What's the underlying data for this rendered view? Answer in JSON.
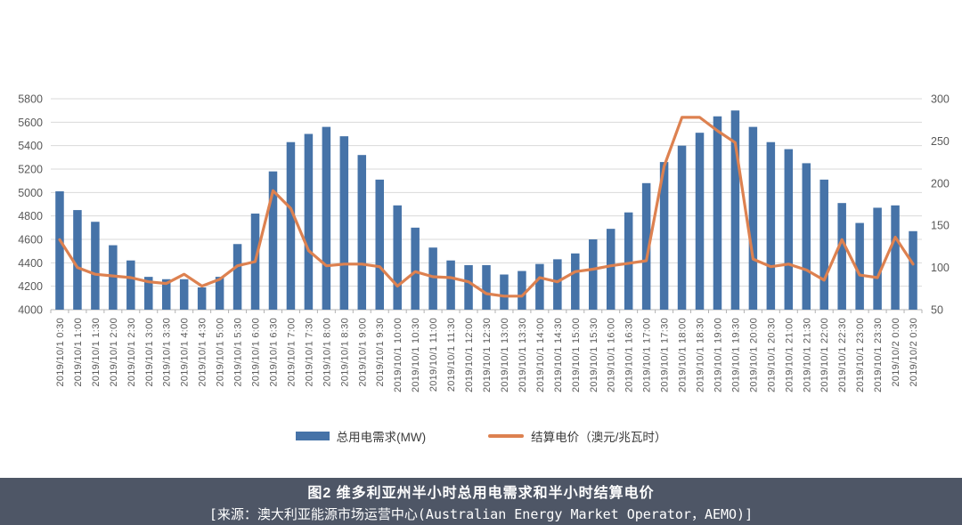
{
  "figure": {
    "caption": {
      "line1": "图2 维多利亚州半小时总用电需求和半小时结算电价",
      "line2": "[来源：澳大利亚能源市场运营中心(Australian Energy Market Operator，AEMO)]",
      "bg_color": "#4e5666",
      "text_color": "#ffffff"
    }
  },
  "chart_data": {
    "type": "combo-bar-line",
    "title": "",
    "categories": [
      "2019/10/1 0:30",
      "2019/10/1 1:00",
      "2019/10/1 1:30",
      "2019/10/1 2:00",
      "2019/10/1 2:30",
      "2019/10/1 3:00",
      "2019/10/1 3:30",
      "2019/10/1 4:00",
      "2019/10/1 4:30",
      "2019/10/1 5:00",
      "2019/10/1 5:30",
      "2019/10/1 6:00",
      "2019/10/1 6:30",
      "2019/10/1 7:00",
      "2019/10/1 7:30",
      "2019/10/1 8:00",
      "2019/10/1 8:30",
      "2019/10/1 9:00",
      "2019/10/1 9:30",
      "2019/10/1 10:00",
      "2019/10/1 10:30",
      "2019/10/1 11:00",
      "2019/10/1 11:30",
      "2019/10/1 12:00",
      "2019/10/1 12:30",
      "2019/10/1 13:00",
      "2019/10/1 13:30",
      "2019/10/1 14:00",
      "2019/10/1 14:30",
      "2019/10/1 15:00",
      "2019/10/1 15:30",
      "2019/10/1 16:00",
      "2019/10/1 16:30",
      "2019/10/1 17:00",
      "2019/10/1 17:30",
      "2019/10/1 18:00",
      "2019/10/1 18:30",
      "2019/10/1 19:00",
      "2019/10/1 19:30",
      "2019/10/1 20:00",
      "2019/10/1 20:30",
      "2019/10/1 21:00",
      "2019/10/1 21:30",
      "2019/10/1 22:00",
      "2019/10/1 22:30",
      "2019/10/1 23:00",
      "2019/10/1 23:30",
      "2019/10/2 0:00",
      "2019/10/2 0:30"
    ],
    "series": [
      {
        "name": "总用电需求(MW)",
        "type": "bar",
        "axis": "left",
        "color": "#4673a8",
        "values": [
          5010,
          4850,
          4750,
          4550,
          4420,
          4280,
          4260,
          4260,
          4190,
          4280,
          4560,
          4820,
          5180,
          5430,
          5500,
          5560,
          5480,
          5320,
          5110,
          4890,
          4700,
          4530,
          4420,
          4380,
          4380,
          4300,
          4330,
          4390,
          4430,
          4480,
          4600,
          4690,
          4830,
          5080,
          5260,
          5400,
          5510,
          5650,
          5700,
          5560,
          5430,
          5370,
          5250,
          5110,
          4910,
          4740,
          4870,
          4890,
          4670
        ]
      },
      {
        "name": "结算电价（澳元/兆瓦时）",
        "type": "line",
        "axis": "right",
        "color": "#dd8150",
        "values": [
          133,
          100,
          92,
          90,
          88,
          83,
          81,
          92,
          78,
          86,
          102,
          107,
          191,
          170,
          120,
          102,
          104,
          104,
          101,
          78,
          95,
          89,
          88,
          83,
          69,
          66,
          66,
          88,
          83,
          95,
          98,
          102,
          105,
          108,
          220,
          278,
          278,
          262,
          248,
          110,
          101,
          104,
          97,
          85,
          133,
          91,
          88,
          136,
          104
        ]
      }
    ],
    "left_axis": {
      "min": 4000,
      "max": 5800,
      "ticks": [
        5800,
        5600,
        5400,
        5200,
        5000,
        4800,
        4600,
        4400,
        4200,
        4000
      ]
    },
    "right_axis": {
      "min": 50,
      "max": 300,
      "ticks": [
        300,
        250,
        200,
        150,
        100,
        50
      ]
    },
    "grid": true,
    "grid_color": "#d9d9d9",
    "axis_line_color": "#b3b3b3",
    "tick_label_color": "#595959",
    "legend_position": "bottom"
  }
}
